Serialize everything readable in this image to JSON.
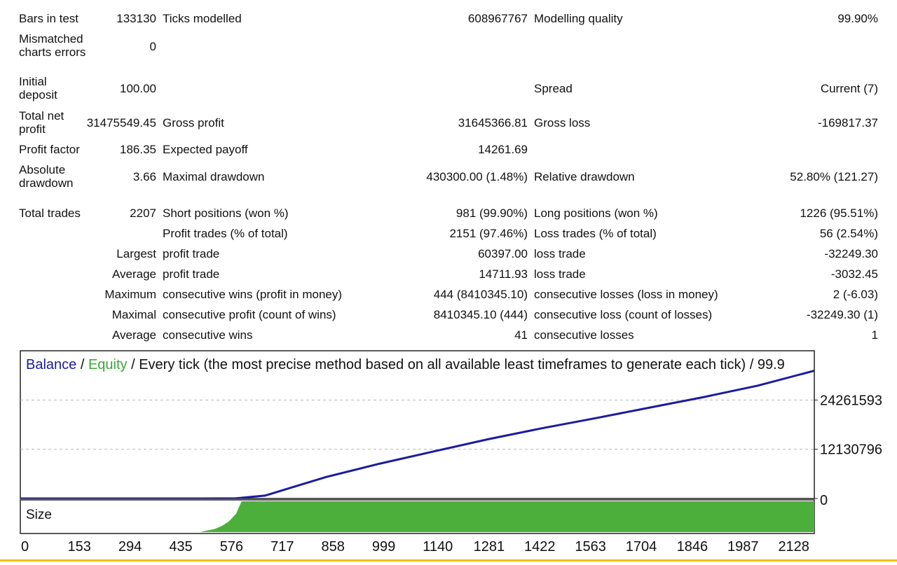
{
  "colors": {
    "balance": "#1c1c9c",
    "equity": "#3aa83a",
    "size_fill": "#4caf3c",
    "grid": "#b8b8b8",
    "accent_rule": "#f3c200"
  },
  "report": {
    "bars_in_test": {
      "label": "Bars in test",
      "value": "133130"
    },
    "ticks_modelled": {
      "label": "Ticks modelled",
      "value": "608967767"
    },
    "modelling_quality": {
      "label": "Modelling quality",
      "value": "99.90%"
    },
    "mismatched": {
      "label": "Mismatched charts errors",
      "value": "0"
    },
    "initial_deposit": {
      "label": "Initial deposit",
      "value": "100.00"
    },
    "spread": {
      "label": "Spread",
      "value": "Current (7)"
    },
    "total_net_profit": {
      "label": "Total net profit",
      "value": "31475549.45"
    },
    "gross_profit": {
      "label": "Gross profit",
      "value": "31645366.81"
    },
    "gross_loss": {
      "label": "Gross loss",
      "value": "-169817.37"
    },
    "profit_factor": {
      "label": "Profit factor",
      "value": "186.35"
    },
    "expected_payoff": {
      "label": "Expected payoff",
      "value": "14261.69"
    },
    "absolute_drawdown": {
      "label": "Absolute drawdown",
      "value": "3.66"
    },
    "maximal_drawdown": {
      "label": "Maximal drawdown",
      "value": "430300.00 (1.48%)"
    },
    "relative_drawdown": {
      "label": "Relative drawdown",
      "value": "52.80% (121.27)"
    },
    "total_trades": {
      "label": "Total trades",
      "value": "2207"
    },
    "short_positions": {
      "label": "Short positions (won %)",
      "value": "981 (99.90%)"
    },
    "long_positions": {
      "label": "Long positions (won %)",
      "value": "1226 (95.51%)"
    },
    "profit_trades": {
      "label": "Profit trades (% of total)",
      "value": "2151 (97.46%)"
    },
    "loss_trades": {
      "label": "Loss trades (% of total)",
      "value": "56 (2.54%)"
    },
    "largest": {
      "label": "Largest",
      "profit_label": "profit trade",
      "profit_value": "60397.00",
      "loss_label": "loss trade",
      "loss_value": "-32249.30"
    },
    "average": {
      "label": "Average",
      "profit_label": "profit trade",
      "profit_value": "14711.93",
      "loss_label": "loss trade",
      "loss_value": "-3032.45"
    },
    "maximum": {
      "label": "Maximum",
      "wins_label": "consecutive wins (profit in money)",
      "wins_value": "444 (8410345.10)",
      "losses_label": "consecutive losses (loss in money)",
      "losses_value": "2 (-6.03)"
    },
    "maximal": {
      "label": "Maximal",
      "profit_label": "consecutive profit (count of wins)",
      "profit_value": "8410345.10 (444)",
      "loss_label": "consecutive loss (count of losses)",
      "loss_value": "-32249.30 (1)"
    },
    "average_consecutive": {
      "label": "Average",
      "wins_label": "consecutive wins",
      "wins_value": "41",
      "losses_label": "consecutive losses",
      "losses_value": "1"
    }
  },
  "chart": {
    "legend_balance": "Balance",
    "legend_sep1": " / ",
    "legend_equity": "Equity",
    "legend_rest": " / Every tick (the most precise method based on all available least timeframes to generate each tick) / 99.9",
    "y_ticks": [
      "24261593",
      "12130796",
      "0"
    ],
    "size_label": "Size",
    "x_ticks": [
      "0",
      "153",
      "294",
      "435",
      "576",
      "717",
      "858",
      "999",
      "1140",
      "1281",
      "1422",
      "1563",
      "1704",
      "1846",
      "1987",
      "2128"
    ]
  },
  "chart_data": {
    "type": "line",
    "title": "Balance / Equity / Every tick (the most precise method based on all available least timeframes to generate each tick) / 99.9",
    "xlabel": "",
    "ylabel": "",
    "xlim": [
      0,
      2207
    ],
    "ylim": [
      0,
      36392389
    ],
    "x_tick_labels": [
      "0",
      "153",
      "294",
      "435",
      "576",
      "717",
      "858",
      "999",
      "1140",
      "1281",
      "1422",
      "1563",
      "1704",
      "1846",
      "1987",
      "2128"
    ],
    "y_tick_labels": [
      "24261593",
      "12130796",
      "0"
    ],
    "series": [
      {
        "name": "Balance",
        "x": [
          0,
          100,
          200,
          300,
          400,
          500,
          600,
          680,
          750,
          850,
          1000,
          1150,
          1300,
          1450,
          1600,
          1750,
          1900,
          2050,
          2207
        ],
        "values": [
          100,
          200,
          300,
          450,
          600,
          1000,
          30000,
          700000,
          2600000,
          5300000,
          8600000,
          11600000,
          14600000,
          17300000,
          19800000,
          22400000,
          25000000,
          27800000,
          31475549
        ]
      },
      {
        "name": "Size",
        "x": [
          0,
          500,
          510,
          540,
          560,
          580,
          600,
          615,
          2207
        ],
        "values": [
          0,
          0,
          0.03,
          0.1,
          0.2,
          0.35,
          0.6,
          1,
          1
        ]
      }
    ]
  }
}
